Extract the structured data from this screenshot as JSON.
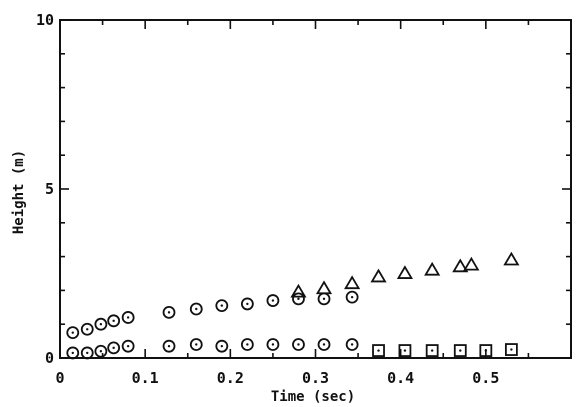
{
  "chart_data": {
    "type": "scatter",
    "title": "",
    "xlabel": "Time (sec)",
    "ylabel": "Height (m)",
    "xlim": [
      0,
      0.6
    ],
    "ylim": [
      0,
      10
    ],
    "xticks": [
      0,
      0.1,
      0.2,
      0.3,
      0.4,
      0.5
    ],
    "xtick_labels": [
      "0",
      "0.1",
      "0.2",
      "0.3",
      "0.4",
      "0.5"
    ],
    "yticks": [
      0,
      5,
      10
    ],
    "ytick_labels": [
      "0",
      "5",
      "10"
    ],
    "grid": false,
    "legend": "none",
    "series": [
      {
        "marker": "circle-dot",
        "points": [
          [
            0.015,
            0.75
          ],
          [
            0.032,
            0.85
          ],
          [
            0.048,
            1.0
          ],
          [
            0.063,
            1.1
          ],
          [
            0.08,
            1.2
          ],
          [
            0.128,
            1.35
          ],
          [
            0.16,
            1.45
          ],
          [
            0.19,
            1.55
          ],
          [
            0.22,
            1.6
          ],
          [
            0.25,
            1.7
          ],
          [
            0.28,
            1.75
          ],
          [
            0.31,
            1.75
          ],
          [
            0.343,
            1.8
          ]
        ]
      },
      {
        "marker": "circle-dot",
        "points": [
          [
            0.015,
            0.15
          ],
          [
            0.032,
            0.15
          ],
          [
            0.048,
            0.2
          ],
          [
            0.063,
            0.3
          ],
          [
            0.08,
            0.35
          ],
          [
            0.128,
            0.35
          ],
          [
            0.16,
            0.4
          ],
          [
            0.19,
            0.35
          ],
          [
            0.22,
            0.4
          ],
          [
            0.25,
            0.4
          ],
          [
            0.28,
            0.4
          ],
          [
            0.31,
            0.4
          ],
          [
            0.343,
            0.4
          ]
        ]
      },
      {
        "marker": "triangle",
        "points": [
          [
            0.28,
            1.95
          ],
          [
            0.31,
            2.05
          ],
          [
            0.343,
            2.2
          ],
          [
            0.374,
            2.4
          ],
          [
            0.405,
            2.5
          ],
          [
            0.437,
            2.6
          ],
          [
            0.47,
            2.7
          ],
          [
            0.483,
            2.75
          ],
          [
            0.53,
            2.9
          ]
        ]
      },
      {
        "marker": "square",
        "points": [
          [
            0.374,
            0.22
          ],
          [
            0.405,
            0.22
          ],
          [
            0.437,
            0.22
          ],
          [
            0.47,
            0.22
          ],
          [
            0.5,
            0.22
          ],
          [
            0.53,
            0.25
          ]
        ]
      }
    ]
  }
}
